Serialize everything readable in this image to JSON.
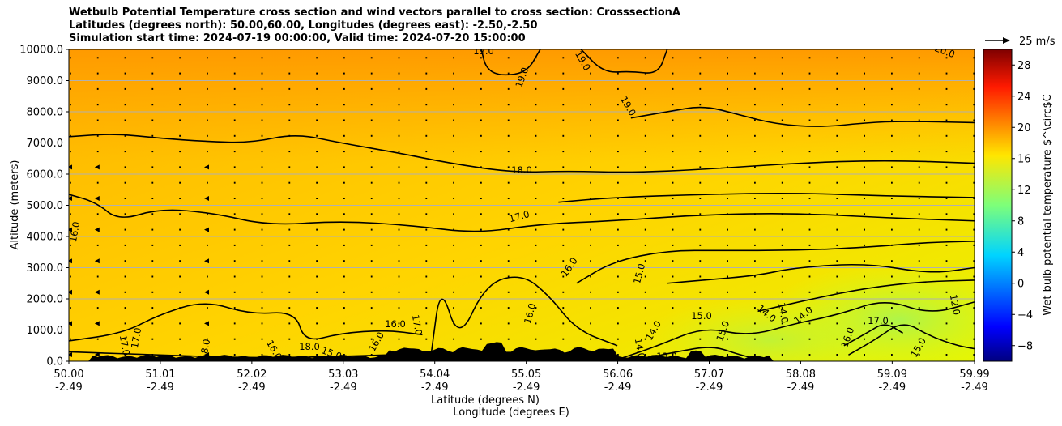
{
  "chart_data": {
    "type": "contour",
    "title_lines": [
      "Wetbulb Potential Temperature cross section and wind vectors parallel to cross section: CrosssectionA",
      "Latitudes (degrees north): 50.00,60.00, Longitudes (degrees east): -2.50,-2.50",
      "Simulation start time: 2024-07-19 00:00:00, Valid time: 2024-07-20 15:00:00"
    ],
    "ylabel": "Altitude (meters)",
    "xlabel_lines": [
      "Latitude (degrees N)",
      "Longitude (degrees E)"
    ],
    "xlim": [
      50.0,
      59.99
    ],
    "ylim": [
      0,
      10000
    ],
    "y_ticks": [
      0,
      1000,
      2000,
      3000,
      4000,
      5000,
      6000,
      7000,
      8000,
      9000,
      10000
    ],
    "y_tick_labels": [
      "0.0",
      "1000.0",
      "2000.0",
      "3000.0",
      "4000.0",
      "5000.0",
      "6000.0",
      "7000.0",
      "8000.0",
      "9000.0",
      "10000.0"
    ],
    "x_ticks": [
      {
        "lat": "50.00",
        "lon": "-2.49"
      },
      {
        "lat": "51.01",
        "lon": "-2.49"
      },
      {
        "lat": "52.02",
        "lon": "-2.49"
      },
      {
        "lat": "53.03",
        "lon": "-2.49"
      },
      {
        "lat": "54.04",
        "lon": "-2.49"
      },
      {
        "lat": "55.05",
        "lon": "-2.49"
      },
      {
        "lat": "56.06",
        "lon": "-2.49"
      },
      {
        "lat": "57.07",
        "lon": "-2.49"
      },
      {
        "lat": "58.08",
        "lon": "-2.49"
      },
      {
        "lat": "59.09",
        "lon": "-2.49"
      },
      {
        "lat": "59.99",
        "lon": "-2.49"
      }
    ],
    "grid": "horizontal",
    "colorbar": {
      "label": "Wet bulb potential temperature $^\\circ$C",
      "min": -10,
      "max": 30,
      "ticks": [
        -8,
        -4,
        0,
        4,
        8,
        12,
        16,
        20,
        24,
        28
      ],
      "tick_labels": [
        "−8",
        "−4",
        "0",
        "4",
        "8",
        "12",
        "16",
        "20",
        "24",
        "28"
      ],
      "colormap": "jet"
    },
    "quiver_key": "25 m/s",
    "contours": [
      {
        "level": 19.0,
        "label": "19.0",
        "points": [
          [
            54.55,
            10000
          ],
          [
            54.6,
            9400
          ],
          [
            54.75,
            9150
          ],
          [
            55.05,
            9250
          ],
          [
            55.2,
            10000
          ]
        ]
      },
      {
        "level": 19.0,
        "label": "19.0",
        "points": [
          [
            55.65,
            10000
          ],
          [
            55.9,
            9250
          ],
          [
            56.2,
            9300
          ],
          [
            56.5,
            9200
          ],
          [
            56.6,
            10000
          ]
        ]
      },
      {
        "level": 19.0,
        "label": "19.0",
        "points": [
          [
            56.2,
            7800
          ],
          [
            56.6,
            8000
          ],
          [
            57.0,
            8200
          ],
          [
            57.4,
            7900
          ],
          [
            57.8,
            7600
          ],
          [
            58.3,
            7500
          ],
          [
            58.8,
            7650
          ],
          [
            59.2,
            7700
          ],
          [
            59.99,
            7650
          ]
        ]
      },
      {
        "level": 18.0,
        "label": "18.0",
        "points": [
          [
            50.0,
            7200
          ],
          [
            50.5,
            7300
          ],
          [
            51.0,
            7150
          ],
          [
            51.5,
            7050
          ],
          [
            52.0,
            7000
          ],
          [
            52.5,
            7300
          ],
          [
            53.0,
            7000
          ],
          [
            53.6,
            6700
          ],
          [
            54.2,
            6350
          ],
          [
            54.9,
            6050
          ],
          [
            55.5,
            6100
          ],
          [
            56.2,
            6050
          ],
          [
            57.0,
            6150
          ],
          [
            58.0,
            6350
          ],
          [
            59.0,
            6450
          ],
          [
            59.99,
            6350
          ]
        ]
      },
      {
        "level": 17.0,
        "label": "17.0",
        "points": [
          [
            50.0,
            5350
          ],
          [
            50.3,
            5100
          ],
          [
            50.55,
            4500
          ],
          [
            51.0,
            4900
          ],
          [
            51.6,
            4750
          ],
          [
            52.2,
            4350
          ],
          [
            53.0,
            4500
          ],
          [
            53.8,
            4350
          ],
          [
            54.5,
            4100
          ],
          [
            55.2,
            4400
          ],
          [
            56.0,
            4500
          ],
          [
            57.0,
            4700
          ],
          [
            58.0,
            4750
          ],
          [
            59.0,
            4600
          ],
          [
            59.99,
            4500
          ]
        ]
      },
      {
        "level": 17.0,
        "label": "",
        "points": [
          [
            55.4,
            5100
          ],
          [
            56.0,
            5250
          ],
          [
            57.0,
            5350
          ],
          [
            58.0,
            5400
          ],
          [
            59.0,
            5300
          ],
          [
            59.99,
            5250
          ]
        ]
      },
      {
        "level": 16.0,
        "label": "16.0",
        "points": [
          [
            55.6,
            2500
          ],
          [
            56.0,
            3200
          ],
          [
            56.6,
            3550
          ],
          [
            57.2,
            3550
          ],
          [
            58.0,
            3550
          ],
          [
            58.8,
            3650
          ],
          [
            59.4,
            3800
          ],
          [
            59.99,
            3850
          ]
        ]
      },
      {
        "level": 15.0,
        "label": "15.0",
        "points": [
          [
            56.6,
            2500
          ],
          [
            57.0,
            2600
          ],
          [
            57.6,
            2750
          ],
          [
            58.0,
            3000
          ],
          [
            58.8,
            3150
          ],
          [
            59.5,
            2800
          ],
          [
            59.99,
            3000
          ]
        ]
      },
      {
        "level": 15.0,
        "label": "",
        "points": [
          [
            57.6,
            1600
          ],
          [
            58.2,
            2000
          ],
          [
            58.8,
            2350
          ],
          [
            59.4,
            2550
          ],
          [
            59.99,
            2600
          ]
        ]
      },
      {
        "level": 16.0,
        "label": "16.0",
        "points": [
          [
            50.0,
            650
          ],
          [
            50.6,
            900
          ],
          [
            51.0,
            1500
          ],
          [
            51.5,
            1950
          ],
          [
            52.0,
            1500
          ],
          [
            52.5,
            1600
          ],
          [
            52.6,
            600
          ],
          [
            53.0,
            900
          ],
          [
            53.5,
            1000
          ],
          [
            53.9,
            850
          ]
        ]
      },
      {
        "level": 16.0,
        "label": "",
        "points": [
          [
            54.0,
            300
          ],
          [
            54.1,
            2500
          ],
          [
            54.3,
            600
          ],
          [
            54.6,
            2500
          ],
          [
            55.0,
            2800
          ],
          [
            55.3,
            2100
          ],
          [
            55.6,
            1000
          ],
          [
            56.05,
            500
          ]
        ]
      },
      {
        "level": 14.0,
        "label": "14.0",
        "points": [
          [
            56.1,
            100
          ],
          [
            56.5,
            500
          ],
          [
            57.0,
            1100
          ],
          [
            57.5,
            800
          ],
          [
            58.0,
            1200
          ],
          [
            58.5,
            1500
          ],
          [
            59.0,
            2000
          ],
          [
            59.5,
            1500
          ],
          [
            59.99,
            1900
          ]
        ]
      },
      {
        "level": 13.0,
        "label": "13.0",
        "points": [
          [
            58.6,
            200
          ],
          [
            58.9,
            700
          ],
          [
            59.2,
            1300
          ],
          [
            59.5,
            800
          ],
          [
            59.8,
            500
          ],
          [
            59.99,
            400
          ]
        ]
      },
      {
        "level": 12.0,
        "label": "12.0",
        "points": [
          [
            58.55,
            500
          ],
          [
            58.8,
            900
          ],
          [
            59.0,
            1250
          ],
          [
            59.2,
            900
          ]
        ]
      },
      {
        "level": 15.0,
        "label": "15.0",
        "points": [
          [
            56.2,
            0
          ],
          [
            56.7,
            300
          ],
          [
            57.1,
            500
          ],
          [
            57.4,
            200
          ],
          [
            57.7,
            0
          ]
        ]
      },
      {
        "level": 17.0,
        "label": "17.0",
        "points": [
          [
            50.0,
            300
          ],
          [
            51.0,
            200
          ],
          [
            52.0,
            100
          ],
          [
            53.0,
            150
          ],
          [
            54.0,
            250
          ]
        ]
      }
    ],
    "inline_labels": [
      "19.0",
      "19.0",
      "19.0",
      "19.0",
      "20.0",
      "18.0",
      "17.0",
      "16.0",
      "16.0",
      "15.0",
      "16.0",
      "16.0",
      "17.0",
      "16.0",
      "15.0",
      "15.0",
      "14.0",
      "14.0",
      "14.0",
      "14.0",
      "14.0",
      "13.0",
      "12.0",
      "17.0",
      "17.0",
      "17.0",
      "18.0",
      "18.0",
      "16.0",
      "15.0",
      "16.0",
      "15.0"
    ]
  }
}
